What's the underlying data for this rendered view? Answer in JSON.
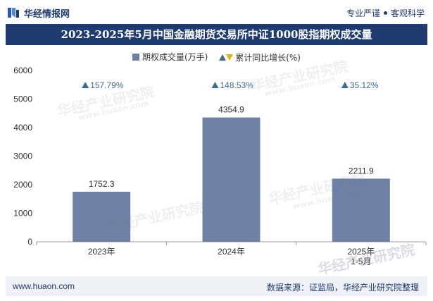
{
  "header": {
    "brand": "华经情报网",
    "tagline_left": "专业严谨",
    "tagline_right": "客观科学"
  },
  "watermarks": [
    "华经产业研究院",
    "www.huaon.com"
  ],
  "chart_data": {
    "type": "bar",
    "title": "2023-2025年5月中国金融期货交易所中证1000股指期权成交量",
    "categories": [
      "2023年",
      "2024年",
      "2025年\n1-5月"
    ],
    "series": [
      {
        "name": "期权成交量(万手)",
        "values": [
          1752.3,
          4354.9,
          2211.9
        ],
        "color": "#6e80a4"
      },
      {
        "name": "累计同比增长(%)",
        "values": [
          157.79,
          148.53,
          35.12
        ],
        "labels": [
          "157.79%",
          "148.53%",
          "35.12%"
        ],
        "color": "#3c6c8c"
      }
    ],
    "value_labels": [
      "1752.3",
      "4354.9",
      "2211.9"
    ],
    "ylim": [
      0,
      6000
    ],
    "yticks": [
      "0",
      "1000",
      "2000",
      "3000",
      "4000",
      "5000",
      "6000"
    ],
    "legend_position": "top"
  },
  "footer": {
    "website": "www.huaon.com",
    "source": "数据来源：证监局，华经产业研究院整理"
  }
}
